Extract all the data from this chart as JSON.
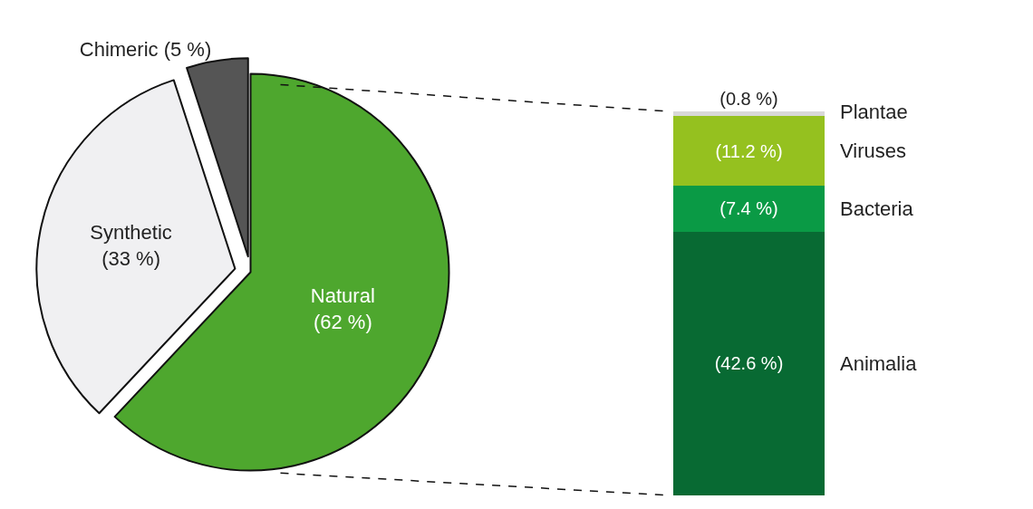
{
  "chart_data": [
    {
      "type": "pie",
      "categories": [
        "Natural",
        "Synthetic",
        "Chimeric"
      ],
      "values": [
        62,
        33,
        5
      ],
      "colors": [
        "#4ea72e",
        "#f0f0f2",
        "#555555"
      ],
      "value_labels": [
        "(62 %)",
        "(33 %)",
        "(5 %)"
      ]
    },
    {
      "type": "bar",
      "stacked": true,
      "categories": [
        null
      ],
      "tick_labels": false,
      "series": [
        {
          "name": "Animalia",
          "color": "#086a33",
          "values": [
            42.6
          ],
          "value_labels": [
            "(42.6 %)"
          ]
        },
        {
          "name": "Bacteria",
          "color": "#0a9a45",
          "values": [
            7.4
          ],
          "value_labels": [
            "(7.4 %)"
          ]
        },
        {
          "name": "Viruses",
          "color": "#95c11f",
          "values": [
            11.2
          ],
          "value_labels": [
            "(11.2 %)"
          ]
        },
        {
          "name": "Plantae",
          "color": "#d8d8d8",
          "values": [
            0.8
          ],
          "value_labels": [
            "(0.8 %)"
          ]
        }
      ]
    }
  ]
}
